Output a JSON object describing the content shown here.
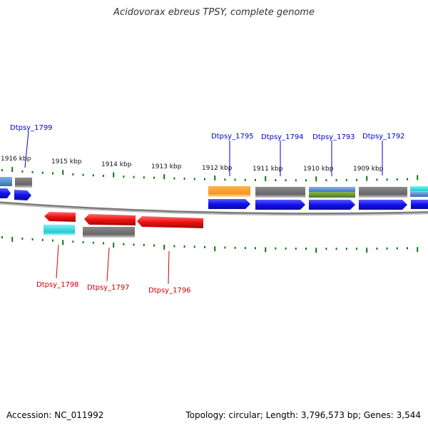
{
  "title": "Acidovorax ebreus TPSY, complete genome",
  "accession": "Accession: NC_011992",
  "topology": "Topology: circular; Length: 3,796,573 bp; Genes: 3,544",
  "colors": {
    "forward_gene": "#1010ee",
    "reverse_gene": "#ee1010",
    "gray_feature": "#6b6b6b",
    "orange_feature": "#f7941d",
    "cyan_feature": "#33d6dd",
    "steel_feature": "#4a84c8",
    "green_feature": "#5e8a2b",
    "tick": "#0a7a0a",
    "backbone": "#808080",
    "forward_label": "#0000cc",
    "reverse_label": "#cc0000"
  },
  "scale_labels": [
    "1916 kbp",
    "1915 kbp",
    "1914 kbp",
    "1913 kbp",
    "1912 kbp",
    "1911 kbp",
    "1910 kbp",
    "1909 kbp"
  ],
  "forward_gene_labels": [
    "Dtpsy_1799",
    "Dtpsy_1795",
    "Dtpsy_1794",
    "Dtpsy_1793",
    "Dtpsy_1792"
  ],
  "reverse_gene_labels": [
    "Dtpsy_1798",
    "Dtpsy_1797",
    "Dtpsy_1796"
  ]
}
